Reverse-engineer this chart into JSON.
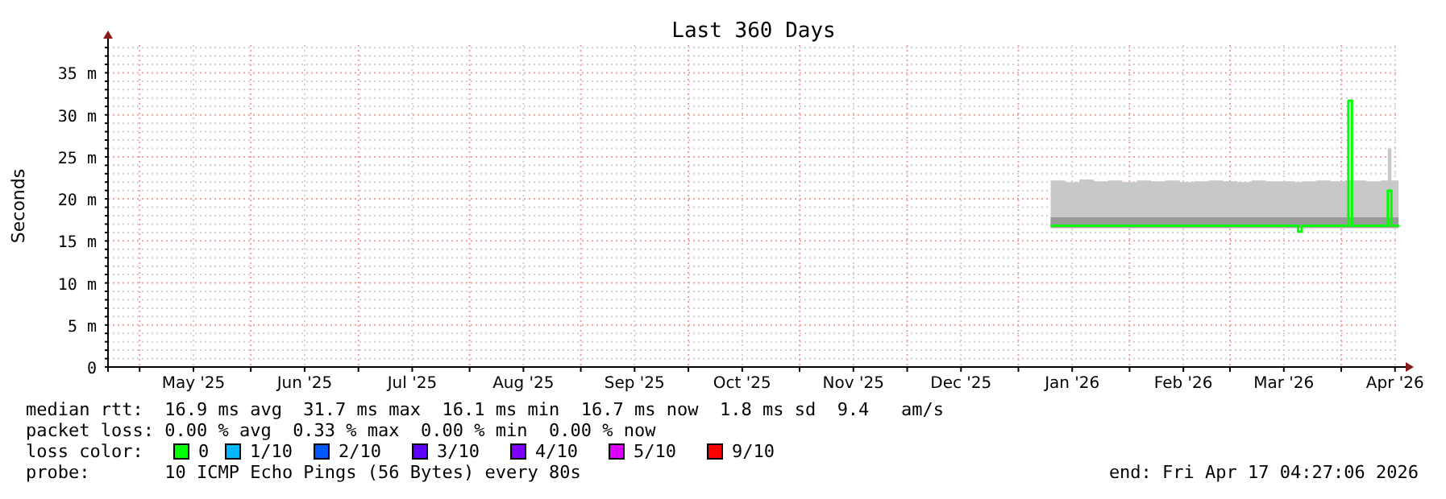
{
  "chart_data": {
    "type": "line",
    "title": "Last 360 Days",
    "ylabel": "Seconds",
    "legend_title": "loss color:",
    "legend": "bottom",
    "grid": true,
    "xlim": [
      "2025-04-22T04:27",
      "2026-04-17T04:27"
    ],
    "xticks": [
      {
        "value": "2025-05-01",
        "label": null
      },
      {
        "value": "2025-05-16",
        "label": "May '25"
      },
      {
        "value": "2025-06-01",
        "label": null
      },
      {
        "value": "2025-06-16",
        "label": "Jun '25"
      },
      {
        "value": "2025-07-01",
        "label": null
      },
      {
        "value": "2025-07-16",
        "label": "Jul '25"
      },
      {
        "value": "2025-08-01",
        "label": null
      },
      {
        "value": "2025-08-16",
        "label": "Aug '25"
      },
      {
        "value": "2025-09-01",
        "label": null
      },
      {
        "value": "2025-09-16",
        "label": "Sep '25"
      },
      {
        "value": "2025-10-01",
        "label": null
      },
      {
        "value": "2025-10-16",
        "label": "Oct '25"
      },
      {
        "value": "2025-11-01",
        "label": null
      },
      {
        "value": "2025-11-16",
        "label": "Nov '25"
      },
      {
        "value": "2025-12-01",
        "label": null
      },
      {
        "value": "2025-12-16",
        "label": "Dec '25"
      },
      {
        "value": "2026-01-01",
        "label": null
      },
      {
        "value": "2026-01-16",
        "label": "Jan '26"
      },
      {
        "value": "2026-02-01",
        "label": null
      },
      {
        "value": "2026-02-16",
        "label": "Feb '26"
      },
      {
        "value": "2026-03-01",
        "label": null
      },
      {
        "value": "2026-03-16",
        "label": "Mar '26"
      },
      {
        "value": "2026-04-01",
        "label": null
      },
      {
        "value": "2026-04-16",
        "label": "Apr '26"
      }
    ],
    "ylim": [
      0,
      38.3
    ],
    "yticks": [
      {
        "value": 0,
        "label": "0"
      },
      {
        "value": 1,
        "label": null
      },
      {
        "value": 2,
        "label": null
      },
      {
        "value": 3,
        "label": null
      },
      {
        "value": 4,
        "label": null
      },
      {
        "value": 5,
        "label": "5 m"
      },
      {
        "value": 6,
        "label": null
      },
      {
        "value": 7,
        "label": null
      },
      {
        "value": 8,
        "label": null
      },
      {
        "value": 9,
        "label": null
      },
      {
        "value": 10,
        "label": "10 m"
      },
      {
        "value": 11,
        "label": null
      },
      {
        "value": 12,
        "label": null
      },
      {
        "value": 13,
        "label": null
      },
      {
        "value": 14,
        "label": null
      },
      {
        "value": 15,
        "label": "15 m"
      },
      {
        "value": 16,
        "label": null
      },
      {
        "value": 17,
        "label": null
      },
      {
        "value": 18,
        "label": null
      },
      {
        "value": 19,
        "label": null
      },
      {
        "value": 20,
        "label": "20 m"
      },
      {
        "value": 21,
        "label": null
      },
      {
        "value": 22,
        "label": null
      },
      {
        "value": 23,
        "label": null
      },
      {
        "value": 24,
        "label": null
      },
      {
        "value": 25,
        "label": "25 m"
      },
      {
        "value": 26,
        "label": null
      },
      {
        "value": 27,
        "label": null
      },
      {
        "value": 28,
        "label": null
      },
      {
        "value": 29,
        "label": null
      },
      {
        "value": 30,
        "label": "30 m"
      },
      {
        "value": 31,
        "label": null
      },
      {
        "value": 32,
        "label": null
      },
      {
        "value": 33,
        "label": null
      },
      {
        "value": 34,
        "label": null
      },
      {
        "value": 35,
        "label": "35 m"
      },
      {
        "value": 36,
        "label": null
      },
      {
        "value": 37,
        "label": null
      },
      {
        "value": 38,
        "label": null
      }
    ],
    "x": [
      "2026-01-10",
      "2026-01-14",
      "2026-01-18",
      "2026-01-22",
      "2026-01-26",
      "2026-01-30",
      "2026-02-03",
      "2026-02-07",
      "2026-02-11",
      "2026-02-15",
      "2026-02-19",
      "2026-02-23",
      "2026-02-27",
      "2026-03-03",
      "2026-03-07",
      "2026-03-11",
      "2026-03-15",
      "2026-03-19",
      "2026-03-20",
      "2026-03-21",
      "2026-03-25",
      "2026-03-29",
      "2026-04-02",
      "2026-04-03",
      "2026-04-04",
      "2026-04-08",
      "2026-04-12",
      "2026-04-13",
      "2026-04-14",
      "2026-04-15",
      "2026-04-17"
    ],
    "series": [
      {
        "color": "#c8c8c8",
        "values": [
          null,
          null,
          null,
          null,
          null,
          null,
          null,
          null,
          null,
          null,
          null,
          null,
          null,
          null,
          null,
          null,
          null,
          null,
          null,
          null,
          null,
          null,
          null,
          null,
          null,
          null,
          null,
          null,
          null,
          null,
          null
        ],
        "lower": [
          16.5,
          16.5,
          16.5,
          16.5,
          16.5,
          16.5,
          16.5,
          16.5,
          16.5,
          16.5,
          16.5,
          16.5,
          16.5,
          16.5,
          16.5,
          16.5,
          16.5,
          16.5,
          16.5,
          16.5,
          16.5,
          16.5,
          16.5,
          16.5,
          16.5,
          16.5,
          16.5,
          16.5,
          16.5,
          16.5,
          16.5
        ],
        "upper": [
          22.2,
          22.0,
          22.3,
          22.1,
          22.2,
          22.0,
          22.2,
          22.1,
          22.2,
          22.0,
          22.1,
          22.2,
          22.1,
          22.0,
          22.2,
          22.1,
          22.1,
          22.0,
          22.0,
          22.1,
          22.2,
          22.1,
          22.2,
          22.2,
          22.2,
          22.1,
          22.2,
          22.2,
          26.0,
          22.2,
          22.2
        ]
      },
      {
        "color": "#9a9a9a",
        "values": [
          null,
          null,
          null,
          null,
          null,
          null,
          null,
          null,
          null,
          null,
          null,
          null,
          null,
          null,
          null,
          null,
          null,
          null,
          null,
          null,
          null,
          null,
          null,
          null,
          null,
          null,
          null,
          null,
          null,
          null,
          null
        ],
        "lower": [
          16.6,
          16.6,
          16.6,
          16.6,
          16.6,
          16.6,
          16.6,
          16.6,
          16.6,
          16.6,
          16.6,
          16.6,
          16.6,
          16.6,
          16.6,
          16.6,
          16.6,
          16.6,
          16.6,
          16.6,
          16.6,
          16.6,
          16.6,
          16.6,
          16.6,
          16.6,
          16.6,
          16.6,
          16.6,
          16.6,
          16.6
        ],
        "upper": [
          17.8,
          17.8,
          17.8,
          17.8,
          17.8,
          17.8,
          17.8,
          17.8,
          17.8,
          17.8,
          17.8,
          17.8,
          17.8,
          17.8,
          17.8,
          17.8,
          17.8,
          17.8,
          17.8,
          17.8,
          17.8,
          17.8,
          17.8,
          17.8,
          17.8,
          17.8,
          17.8,
          17.8,
          17.8,
          17.8,
          17.8
        ]
      },
      {
        "name": "0",
        "color": "#00ff00",
        "values": [
          16.8,
          16.8,
          16.8,
          16.8,
          16.8,
          16.8,
          16.8,
          16.8,
          16.8,
          16.8,
          16.8,
          16.8,
          16.8,
          16.8,
          16.8,
          16.8,
          16.8,
          16.8,
          16.1,
          16.8,
          16.8,
          16.8,
          16.8,
          31.7,
          16.8,
          16.8,
          16.8,
          16.8,
          21.0,
          16.8,
          16.7
        ]
      },
      {
        "name": "1/10",
        "color": "#00b8ff",
        "values": [
          null,
          null,
          null,
          null,
          null,
          null,
          null,
          null,
          null,
          null,
          null,
          null,
          null,
          null,
          null,
          null,
          null,
          null,
          null,
          null,
          null,
          null,
          null,
          null,
          null,
          null,
          null,
          null,
          null,
          null,
          null
        ]
      },
      {
        "name": "2/10",
        "color": "#0059ff",
        "values": [
          null,
          null,
          null,
          null,
          null,
          null,
          null,
          null,
          null,
          null,
          null,
          null,
          null,
          null,
          null,
          null,
          null,
          null,
          null,
          null,
          null,
          null,
          null,
          null,
          null,
          null,
          null,
          null,
          null,
          null,
          null
        ]
      },
      {
        "name": "3/10",
        "color": "#5e00ff",
        "values": [
          null,
          null,
          null,
          null,
          null,
          null,
          null,
          null,
          null,
          null,
          null,
          null,
          null,
          null,
          null,
          null,
          null,
          null,
          null,
          null,
          null,
          null,
          null,
          null,
          null,
          null,
          null,
          null,
          null,
          null,
          null
        ]
      },
      {
        "name": "4/10",
        "color": "#7e00ff",
        "values": [
          null,
          null,
          null,
          null,
          null,
          null,
          null,
          null,
          null,
          null,
          null,
          null,
          null,
          null,
          null,
          null,
          null,
          null,
          null,
          null,
          null,
          null,
          null,
          null,
          null,
          null,
          null,
          null,
          null,
          null,
          null
        ]
      },
      {
        "name": "5/10",
        "color": "#dd00ff",
        "values": [
          null,
          null,
          null,
          null,
          null,
          null,
          null,
          null,
          null,
          null,
          null,
          null,
          null,
          null,
          null,
          null,
          null,
          null,
          null,
          null,
          null,
          null,
          null,
          null,
          null,
          null,
          null,
          null,
          null,
          null,
          null
        ]
      },
      {
        "name": "9/10",
        "color": "#ff0000",
        "values": [
          null,
          null,
          null,
          null,
          null,
          null,
          null,
          null,
          null,
          null,
          null,
          null,
          null,
          null,
          null,
          null,
          null,
          null,
          null,
          null,
          null,
          null,
          null,
          null,
          null,
          null,
          null,
          null,
          null,
          null,
          null
        ]
      }
    ],
    "annotations": [
      "median rtt:  16.9 ms avg  31.7 ms max  16.1 ms min  16.7 ms now  1.8 ms sd  9.4   am/s",
      "packet loss: 0.00 % avg  0.33 % max  0.00 % min  0.00 % now",
      "probe:       10 ICMP Echo Pings (56 Bytes) every 80s",
      "end: Fri Apr 17 04:27:06 2026"
    ]
  }
}
